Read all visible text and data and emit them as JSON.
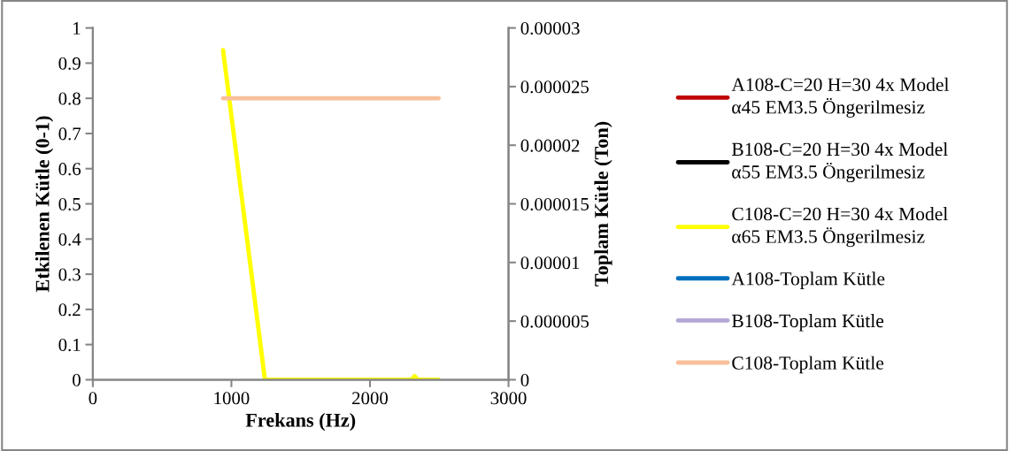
{
  "chart_data": {
    "type": "line",
    "xlabel": "Frekans (Hz)",
    "ylabel": "Etkilenen Kütle (0-1)",
    "y2label": "Toplam Kütle (Ton)",
    "xlim": [
      0,
      3000
    ],
    "xticks": [
      0,
      1000,
      2000,
      3000
    ],
    "ylim": [
      0,
      1
    ],
    "yticks": [
      0,
      0.1,
      0.2,
      0.3,
      0.4,
      0.5,
      0.6,
      0.7,
      0.8,
      0.9,
      1
    ],
    "y2lim": [
      0,
      3e-05
    ],
    "y2ticks": [
      {
        "value": 0,
        "label": "0"
      },
      {
        "value": 5e-06,
        "label": "0.000005"
      },
      {
        "value": 1e-05,
        "label": "0.00001"
      },
      {
        "value": 1.5e-05,
        "label": "0.000015"
      },
      {
        "value": 2e-05,
        "label": "0.00002"
      },
      {
        "value": 2.5e-05,
        "label": "0.000025"
      },
      {
        "value": 3e-05,
        "label": "0.00003"
      }
    ],
    "grid": false,
    "legend": "right",
    "marker": "none",
    "line_style": "solid",
    "series": [
      {
        "name": "A108-C=20 H=30 4x Model α45 EM3.5 Öngerilmesiz",
        "color": "#c00000"
      },
      {
        "name": "B108-C=20 H=30 4x Model α55 EM3.5 Öngerilmesiz",
        "color": "#000000"
      },
      {
        "name": "C108-C=20 H=30 4x Model α65 EM3.5 Öngerilmesiz",
        "color": "#ffff00",
        "x": [
          940,
          1242,
          2300,
          2322,
          2345,
          2495
        ],
        "values": [
          0.937,
          0,
          0,
          0.01,
          0,
          0
        ]
      },
      {
        "name": "A108-Toplam Kütle",
        "color": "#0070c0",
        "axis": "y2"
      },
      {
        "name": "B108-Toplam Kütle",
        "color": "#b4a7d6",
        "axis": "y2"
      },
      {
        "name": "C108-Toplam Kütle",
        "color": "#f8c09a",
        "axis": "y2",
        "x": [
          940,
          2495
        ],
        "values": [
          2.4e-05,
          2.4e-05
        ]
      }
    ]
  }
}
